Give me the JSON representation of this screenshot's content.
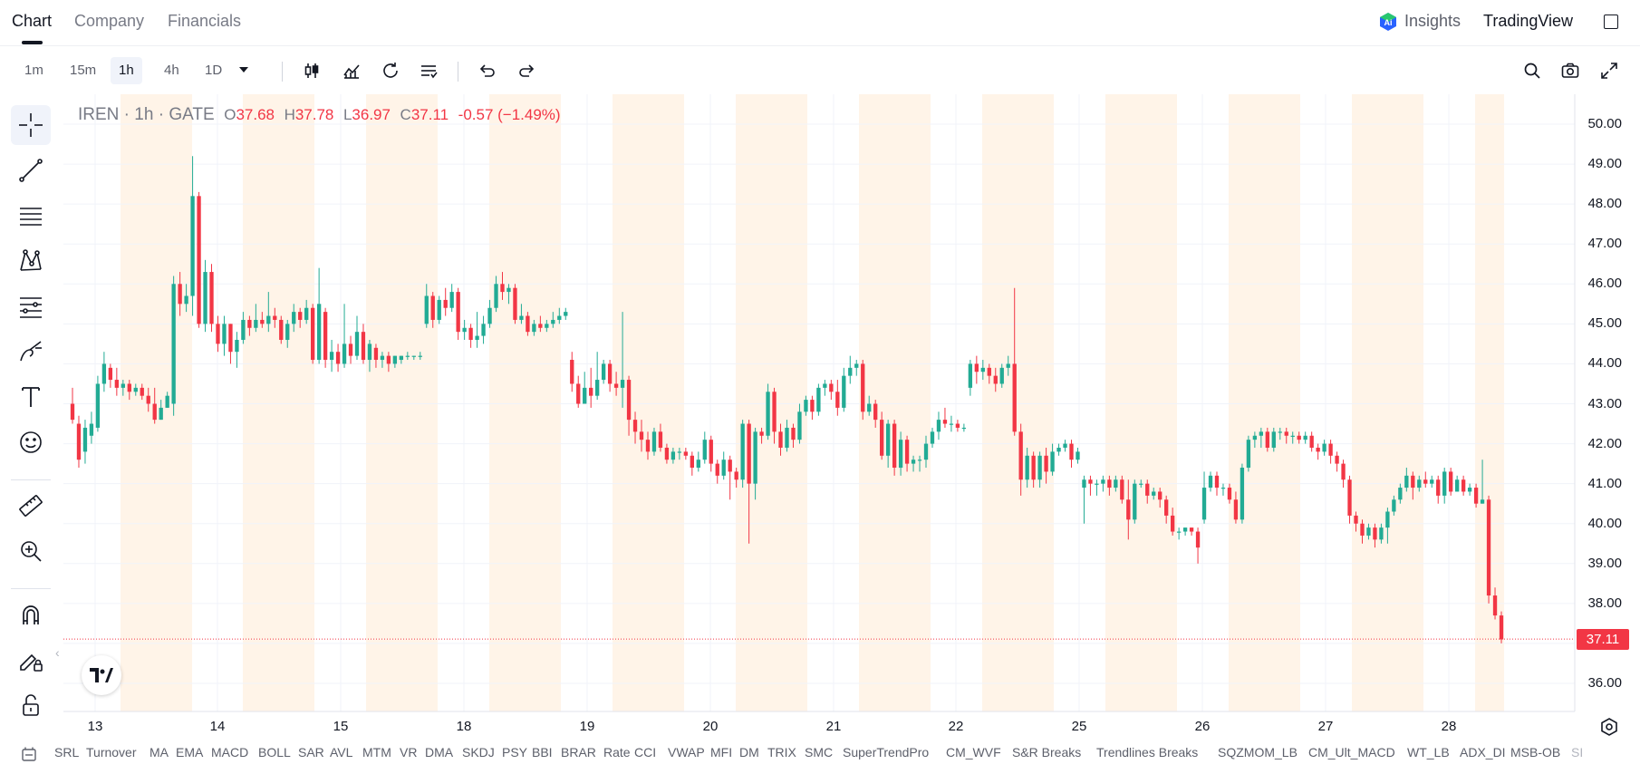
{
  "header": {
    "tabs": [
      {
        "label": "Chart",
        "active": true
      },
      {
        "label": "Company",
        "active": false
      },
      {
        "label": "Financials",
        "active": false
      }
    ],
    "insights_label": "Insights",
    "brand_label": "TradingView"
  },
  "toolbar": {
    "timeframes": [
      {
        "label": "1m",
        "active": false
      },
      {
        "label": "15m",
        "active": false
      },
      {
        "label": "1h",
        "active": true
      },
      {
        "label": "4h",
        "active": false
      },
      {
        "label": "1D",
        "active": false
      }
    ]
  },
  "legend": {
    "symbol": "IREN",
    "interval": "1h",
    "exchange": "GATE",
    "open_key": "O",
    "open": "37.68",
    "high_key": "H",
    "high": "37.78",
    "low_key": "L",
    "low": "36.97",
    "close_key": "C",
    "close": "37.11",
    "change": "-0.57 (−1.49%)"
  },
  "price_badge": "37.11",
  "indicators": [
    "SRL",
    "Turnover",
    "MA",
    "EMA",
    "MACD",
    "BOLL",
    "SAR",
    "AVL",
    "MTM",
    "VR",
    "DMA",
    "SKDJ",
    "PSY",
    "BBI",
    "BRAR",
    "Rate",
    "CCI",
    "VWAP",
    "MFI",
    "DM",
    "TRIX",
    "SMC",
    "SuperTrendPro",
    "CM_WVF",
    "S&R Breaks",
    "Trendlines Breaks",
    "SQZMOM_LB",
    "CM_Ult_MACD",
    "WT_LB",
    "ADX_DI",
    "MSB-OB",
    "SI"
  ],
  "colors": {
    "up": "#22ab94",
    "down": "#f23645",
    "session": "#fff4e8",
    "grid": "#f0f3fa"
  },
  "chart_data": {
    "type": "candlestick",
    "y_ticks": [
      "50.00",
      "49.00",
      "48.00",
      "47.00",
      "46.00",
      "45.00",
      "44.00",
      "43.00",
      "42.00",
      "41.00",
      "40.00",
      "39.00",
      "38.00",
      "37.00",
      "36.00"
    ],
    "ylim": [
      35.3,
      50.7
    ],
    "x_ticks": [
      "13",
      "14",
      "15",
      "18",
      "19",
      "20",
      "21",
      "22",
      "25",
      "26",
      "27",
      "28"
    ],
    "last_price": 37.11,
    "candles": [
      [
        43.0,
        42.6,
        43.4,
        42.5
      ],
      [
        42.5,
        41.6,
        42.7,
        41.4
      ],
      [
        41.8,
        42.4,
        42.6,
        41.5
      ],
      [
        42.2,
        42.5,
        42.8,
        42.0
      ],
      [
        42.4,
        43.5,
        43.7,
        42.3
      ],
      [
        43.5,
        44.0,
        44.3,
        43.3
      ],
      [
        43.9,
        43.6,
        44.0,
        43.4
      ],
      [
        43.6,
        43.4,
        43.9,
        43.2
      ],
      [
        43.4,
        43.5,
        43.6,
        43.2
      ],
      [
        43.5,
        43.3,
        43.6,
        43.1
      ],
      [
        43.3,
        43.4,
        43.5,
        43.2
      ],
      [
        43.4,
        43.2,
        43.5,
        43.1
      ],
      [
        43.2,
        43.0,
        43.4,
        42.8
      ],
      [
        43.0,
        42.6,
        43.4,
        42.5
      ],
      [
        42.6,
        42.9,
        43.1,
        42.6
      ],
      [
        42.9,
        43.2,
        43.3,
        42.9
      ],
      [
        43.0,
        46.0,
        46.2,
        42.7
      ],
      [
        46.0,
        45.5,
        46.3,
        45.2
      ],
      [
        45.5,
        45.7,
        46.0,
        45.3
      ],
      [
        45.7,
        48.2,
        49.2,
        45.2
      ],
      [
        48.2,
        45.0,
        48.3,
        44.9
      ],
      [
        45.0,
        46.3,
        46.6,
        44.8
      ],
      [
        46.3,
        45.0,
        46.5,
        44.8
      ],
      [
        45.0,
        44.5,
        45.2,
        44.3
      ],
      [
        44.5,
        45.0,
        45.2,
        44.2
      ],
      [
        45.0,
        44.3,
        45.0,
        44.0
      ],
      [
        44.3,
        44.6,
        44.8,
        43.9
      ],
      [
        44.6,
        45.1,
        45.3,
        44.5
      ],
      [
        45.1,
        44.9,
        45.2,
        44.7
      ],
      [
        44.9,
        45.1,
        45.5,
        44.8
      ],
      [
        45.1,
        45.0,
        45.3,
        44.9
      ],
      [
        45.0,
        45.2,
        45.8,
        44.8
      ],
      [
        45.2,
        45.1,
        45.4,
        44.9
      ],
      [
        45.1,
        44.6,
        45.2,
        44.5
      ],
      [
        44.6,
        45.0,
        45.1,
        44.4
      ],
      [
        45.0,
        45.3,
        45.5,
        44.8
      ],
      [
        45.3,
        45.1,
        45.4,
        44.9
      ],
      [
        45.1,
        45.4,
        45.6,
        45.0
      ],
      [
        45.4,
        44.1,
        45.5,
        44.0
      ],
      [
        44.1,
        45.5,
        46.4,
        44.0
      ],
      [
        45.3,
        44.1,
        45.4,
        43.9
      ],
      [
        44.1,
        44.3,
        44.6,
        43.8
      ],
      [
        44.3,
        44.0,
        44.5,
        43.8
      ],
      [
        44.0,
        44.5,
        45.5,
        43.9
      ],
      [
        44.5,
        44.2,
        44.7,
        44.0
      ],
      [
        44.2,
        44.8,
        45.2,
        44.1
      ],
      [
        44.8,
        44.1,
        45.0,
        44.0
      ],
      [
        44.1,
        44.5,
        44.6,
        43.8
      ],
      [
        44.4,
        44.1,
        44.5,
        43.9
      ],
      [
        44.1,
        44.2,
        44.3,
        43.9
      ],
      [
        44.2,
        44.0,
        44.3,
        43.8
      ],
      [
        44.0,
        44.2,
        44.2,
        43.9
      ],
      [
        44.1,
        44.2,
        44.2,
        44.0
      ],
      [
        44.2,
        44.2,
        44.3,
        44.1
      ],
      [
        44.2,
        44.2,
        44.2,
        44.1
      ],
      [
        44.2,
        44.2,
        44.3,
        44.1
      ],
      [
        45.0,
        45.7,
        46.0,
        44.9
      ],
      [
        45.7,
        45.1,
        45.8,
        44.9
      ],
      [
        45.1,
        45.6,
        45.7,
        45.0
      ],
      [
        45.6,
        45.4,
        45.9,
        45.2
      ],
      [
        45.4,
        45.8,
        46.0,
        45.3
      ],
      [
        45.8,
        44.8,
        45.9,
        44.6
      ],
      [
        44.8,
        44.9,
        45.1,
        44.6
      ],
      [
        44.9,
        44.6,
        45.0,
        44.4
      ],
      [
        44.6,
        44.7,
        45.3,
        44.4
      ],
      [
        44.7,
        45.0,
        45.2,
        44.5
      ],
      [
        45.0,
        45.4,
        45.6,
        44.9
      ],
      [
        45.4,
        46.0,
        46.2,
        45.3
      ],
      [
        46.0,
        45.8,
        46.3,
        45.6
      ],
      [
        45.8,
        45.9,
        46.0,
        45.5
      ],
      [
        45.9,
        45.1,
        46.0,
        45.0
      ],
      [
        45.1,
        45.2,
        45.5,
        45.0
      ],
      [
        45.2,
        44.8,
        45.3,
        44.7
      ],
      [
        44.8,
        45.0,
        45.1,
        44.7
      ],
      [
        45.0,
        44.9,
        45.2,
        44.8
      ],
      [
        44.9,
        45.0,
        45.1,
        44.8
      ],
      [
        45.0,
        45.1,
        45.3,
        44.9
      ],
      [
        45.1,
        45.2,
        45.4,
        45.0
      ],
      [
        45.2,
        45.3,
        45.4,
        45.1
      ],
      [
        44.1,
        43.5,
        44.3,
        43.3
      ],
      [
        43.5,
        43.0,
        43.7,
        42.9
      ],
      [
        43.0,
        43.4,
        43.8,
        43.0
      ],
      [
        43.4,
        43.2,
        43.9,
        42.9
      ],
      [
        43.2,
        43.6,
        44.3,
        43.1
      ],
      [
        43.6,
        44.0,
        44.1,
        43.5
      ],
      [
        44.0,
        43.5,
        44.1,
        43.3
      ],
      [
        43.5,
        43.4,
        43.8,
        43.2
      ],
      [
        43.4,
        43.6,
        45.3,
        42.9
      ],
      [
        43.6,
        42.6,
        43.7,
        42.2
      ],
      [
        42.6,
        42.3,
        42.8,
        42.0
      ],
      [
        42.3,
        42.1,
        42.6,
        41.8
      ],
      [
        42.1,
        41.8,
        42.3,
        41.6
      ],
      [
        41.8,
        42.3,
        42.4,
        41.7
      ],
      [
        42.3,
        41.9,
        42.5,
        41.8
      ],
      [
        41.9,
        41.6,
        42.0,
        41.5
      ],
      [
        41.6,
        41.8,
        41.9,
        41.5
      ],
      [
        41.8,
        41.8,
        41.9,
        41.6
      ],
      [
        41.8,
        41.7,
        41.9,
        41.6
      ],
      [
        41.7,
        41.4,
        41.8,
        41.2
      ],
      [
        41.4,
        41.6,
        41.8,
        41.3
      ],
      [
        41.6,
        42.1,
        42.3,
        41.5
      ],
      [
        42.1,
        41.5,
        42.2,
        41.3
      ],
      [
        41.5,
        41.2,
        41.6,
        41.0
      ],
      [
        41.2,
        41.6,
        41.8,
        41.1
      ],
      [
        41.6,
        41.3,
        41.7,
        40.6
      ],
      [
        41.3,
        41.1,
        41.4,
        40.9
      ],
      [
        41.1,
        42.5,
        42.6,
        40.9
      ],
      [
        42.5,
        41.0,
        42.6,
        39.5
      ],
      [
        41.0,
        42.3,
        42.4,
        40.6
      ],
      [
        42.3,
        42.2,
        42.4,
        42.0
      ],
      [
        42.2,
        43.3,
        43.5,
        42.1
      ],
      [
        43.3,
        42.3,
        43.4,
        42.0
      ],
      [
        42.3,
        41.9,
        42.5,
        41.7
      ],
      [
        41.9,
        42.4,
        42.6,
        41.8
      ],
      [
        42.4,
        42.1,
        42.5,
        41.9
      ],
      [
        42.1,
        42.8,
        43.0,
        42.0
      ],
      [
        42.8,
        43.1,
        43.2,
        42.7
      ],
      [
        43.1,
        42.8,
        43.2,
        42.6
      ],
      [
        42.8,
        43.4,
        43.5,
        42.7
      ],
      [
        43.4,
        43.5,
        43.6,
        43.2
      ],
      [
        43.5,
        43.3,
        43.6,
        43.1
      ],
      [
        43.3,
        42.9,
        43.6,
        42.7
      ],
      [
        42.9,
        43.7,
        43.9,
        42.8
      ],
      [
        43.7,
        43.9,
        44.2,
        43.5
      ],
      [
        43.9,
        44.0,
        44.1,
        43.7
      ],
      [
        44.0,
        42.8,
        44.1,
        42.6
      ],
      [
        42.8,
        43.0,
        43.2,
        42.7
      ],
      [
        43.0,
        42.6,
        43.1,
        42.4
      ],
      [
        42.6,
        41.7,
        42.8,
        41.6
      ],
      [
        41.7,
        42.5,
        42.6,
        41.4
      ],
      [
        42.5,
        41.4,
        42.6,
        41.2
      ],
      [
        41.4,
        42.1,
        42.3,
        41.2
      ],
      [
        42.1,
        41.5,
        42.2,
        41.3
      ],
      [
        41.5,
        41.6,
        41.7,
        41.3
      ],
      [
        41.6,
        41.6,
        41.7,
        41.3
      ],
      [
        41.6,
        42.0,
        42.2,
        41.4
      ],
      [
        42.0,
        42.3,
        42.4,
        41.9
      ],
      [
        42.3,
        42.6,
        42.8,
        42.1
      ],
      [
        42.6,
        42.5,
        42.9,
        42.4
      ],
      [
        42.5,
        42.5,
        42.7,
        42.3
      ],
      [
        42.5,
        42.4,
        42.6,
        42.3
      ],
      [
        42.4,
        42.4,
        42.5,
        42.3
      ],
      [
        43.4,
        44.0,
        44.1,
        43.2
      ],
      [
        44.0,
        43.8,
        44.2,
        43.5
      ],
      [
        43.8,
        43.9,
        44.1,
        43.6
      ],
      [
        43.9,
        43.7,
        44.0,
        43.5
      ],
      [
        43.7,
        43.5,
        43.9,
        43.3
      ],
      [
        43.5,
        43.9,
        44.0,
        43.4
      ],
      [
        43.9,
        44.0,
        44.2,
        43.7
      ],
      [
        44.0,
        42.3,
        45.9,
        42.2
      ],
      [
        42.3,
        41.1,
        42.5,
        40.7
      ],
      [
        41.1,
        41.7,
        41.9,
        40.9
      ],
      [
        41.7,
        41.1,
        41.8,
        40.9
      ],
      [
        41.1,
        41.7,
        41.8,
        40.9
      ],
      [
        41.7,
        41.3,
        41.9,
        41.0
      ],
      [
        41.3,
        41.8,
        42.0,
        41.2
      ],
      [
        41.8,
        41.9,
        42.0,
        41.7
      ],
      [
        41.9,
        42.0,
        42.1,
        41.8
      ],
      [
        42.0,
        41.6,
        42.1,
        41.4
      ],
      [
        41.6,
        41.8,
        41.9,
        41.5
      ],
      [
        40.9,
        41.1,
        41.2,
        40.0
      ],
      [
        41.1,
        41.0,
        41.2,
        40.7
      ],
      [
        41.0,
        41.0,
        41.1,
        40.7
      ],
      [
        41.0,
        41.1,
        41.2,
        40.8
      ],
      [
        41.1,
        40.9,
        41.2,
        40.7
      ],
      [
        40.9,
        41.1,
        41.2,
        40.8
      ],
      [
        41.1,
        40.6,
        41.2,
        40.5
      ],
      [
        40.6,
        40.1,
        41.1,
        39.6
      ],
      [
        40.1,
        41.0,
        41.1,
        40.0
      ],
      [
        41.0,
        41.0,
        41.1,
        40.9
      ],
      [
        41.0,
        40.7,
        41.1,
        40.5
      ],
      [
        40.7,
        40.8,
        40.9,
        40.6
      ],
      [
        40.8,
        40.6,
        40.9,
        40.4
      ],
      [
        40.6,
        40.2,
        40.7,
        40.0
      ],
      [
        40.2,
        39.8,
        40.4,
        39.7
      ],
      [
        39.8,
        39.8,
        39.9,
        39.6
      ],
      [
        39.8,
        39.9,
        39.9,
        39.7
      ],
      [
        39.9,
        39.8,
        39.9,
        39.7
      ],
      [
        39.8,
        39.4,
        39.9,
        39.0
      ],
      [
        40.1,
        40.9,
        41.3,
        40.0
      ],
      [
        40.9,
        41.2,
        41.3,
        40.8
      ],
      [
        41.2,
        40.9,
        41.3,
        40.7
      ],
      [
        40.9,
        40.9,
        41.0,
        40.7
      ],
      [
        40.9,
        40.6,
        41.0,
        40.5
      ],
      [
        40.6,
        40.1,
        40.8,
        40.0
      ],
      [
        40.1,
        41.4,
        41.5,
        40.0
      ],
      [
        41.4,
        42.1,
        42.2,
        41.3
      ],
      [
        42.1,
        42.2,
        42.3,
        41.9
      ],
      [
        42.2,
        42.3,
        42.4,
        41.9
      ],
      [
        42.3,
        41.9,
        42.4,
        41.8
      ],
      [
        41.9,
        42.3,
        42.4,
        41.8
      ],
      [
        42.3,
        42.3,
        42.4,
        42.1
      ],
      [
        42.3,
        42.2,
        42.4,
        42.0
      ],
      [
        42.2,
        42.2,
        42.3,
        42.0
      ],
      [
        42.2,
        42.1,
        42.3,
        42.0
      ],
      [
        42.1,
        42.2,
        42.3,
        42.0
      ],
      [
        42.2,
        41.9,
        42.3,
        41.8
      ],
      [
        41.9,
        41.8,
        42.0,
        41.6
      ],
      [
        41.8,
        42.0,
        42.1,
        41.7
      ],
      [
        42.0,
        41.7,
        42.1,
        41.5
      ],
      [
        41.7,
        41.5,
        41.8,
        41.3
      ],
      [
        41.5,
        41.1,
        41.6,
        40.9
      ],
      [
        41.1,
        40.2,
        41.2,
        40.0
      ],
      [
        40.2,
        40.0,
        40.3,
        39.8
      ],
      [
        40.0,
        39.7,
        40.1,
        39.5
      ],
      [
        39.7,
        39.9,
        40.0,
        39.6
      ],
      [
        39.9,
        39.6,
        40.0,
        39.4
      ],
      [
        39.6,
        39.9,
        40.0,
        39.5
      ],
      [
        39.9,
        40.3,
        40.4,
        39.5
      ],
      [
        40.3,
        40.6,
        40.7,
        40.2
      ],
      [
        40.6,
        40.9,
        41.0,
        40.5
      ],
      [
        40.9,
        41.2,
        41.4,
        40.8
      ],
      [
        41.2,
        40.9,
        41.3,
        40.6
      ],
      [
        40.9,
        41.1,
        41.2,
        40.8
      ],
      [
        41.1,
        41.0,
        41.3,
        40.9
      ],
      [
        41.0,
        41.1,
        41.2,
        40.9
      ],
      [
        41.1,
        40.7,
        41.2,
        40.5
      ],
      [
        40.7,
        41.3,
        41.4,
        40.5
      ],
      [
        41.3,
        40.8,
        41.4,
        40.7
      ],
      [
        40.8,
        41.1,
        41.2,
        40.8
      ],
      [
        41.1,
        40.8,
        41.2,
        40.7
      ],
      [
        40.8,
        40.9,
        41.0,
        40.7
      ],
      [
        40.9,
        40.5,
        41.0,
        40.4
      ],
      [
        40.5,
        40.6,
        41.6,
        40.5
      ],
      [
        40.6,
        38.2,
        40.7,
        38.0
      ],
      [
        38.2,
        37.7,
        38.4,
        37.6
      ],
      [
        37.7,
        37.1,
        37.8,
        37.0
      ]
    ]
  }
}
